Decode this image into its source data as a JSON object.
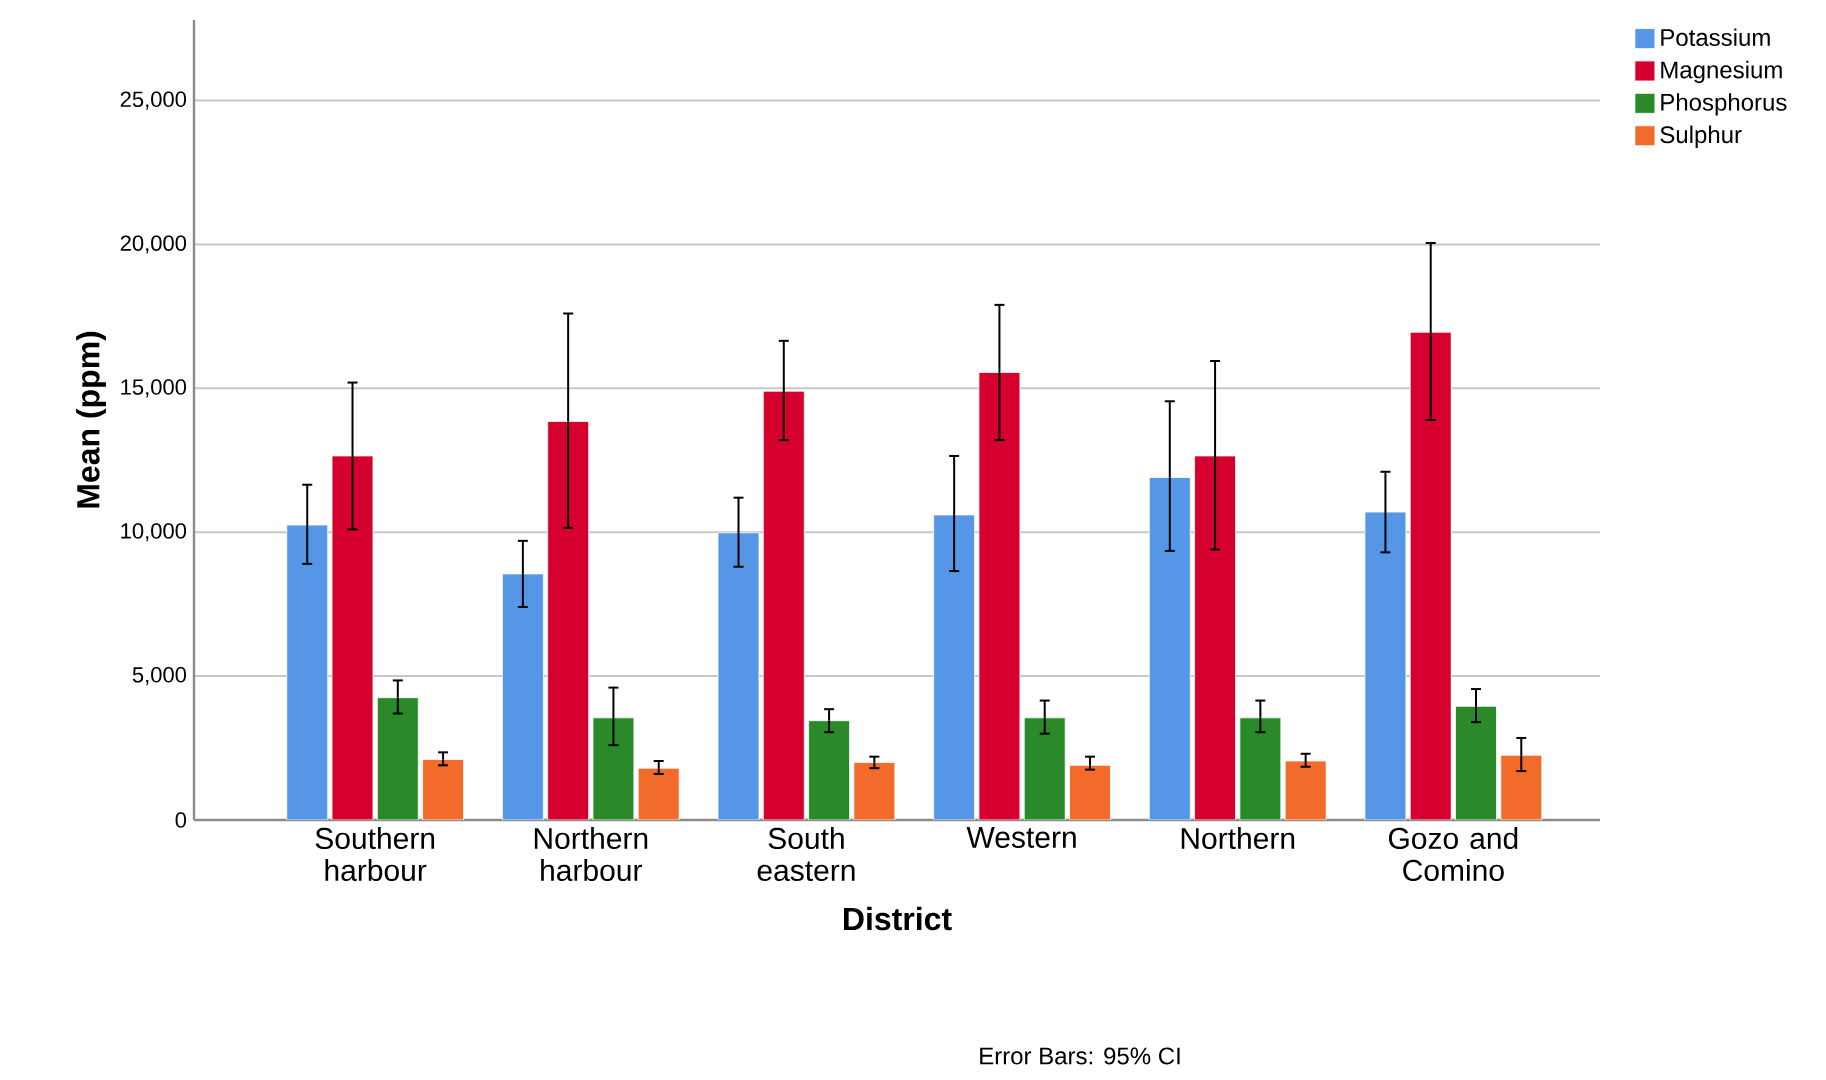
{
  "chart_data": {
    "type": "bar",
    "xlabel": "District",
    "ylabel": "Mean (ppm)",
    "categories": [
      "Southern harbour",
      "Northern harbour",
      "South eastern",
      "Western",
      "Northern",
      "Gozo and Comino"
    ],
    "series": [
      {
        "name": "Potassium",
        "color": "#5596e6",
        "values": [
          10250,
          8550,
          9980,
          10600,
          11900,
          10700
        ],
        "errors": [
          [
            8900,
            11650
          ],
          [
            7400,
            9700
          ],
          [
            8800,
            11200
          ],
          [
            8650,
            12650
          ],
          [
            9350,
            14550
          ],
          [
            9300,
            12100
          ]
        ]
      },
      {
        "name": "Magnesium",
        "color": "#d6002f",
        "values": [
          12650,
          13850,
          14900,
          15550,
          12650,
          16950
        ],
        "errors": [
          [
            10100,
            15200
          ],
          [
            10150,
            17600
          ],
          [
            13200,
            16650
          ],
          [
            13200,
            17900
          ],
          [
            9400,
            15950
          ],
          [
            13900,
            20050
          ]
        ]
      },
      {
        "name": "Phosphorus",
        "color": "#2a8a2a",
        "values": [
          4250,
          3550,
          3450,
          3550,
          3550,
          3950
        ],
        "errors": [
          [
            3700,
            4850
          ],
          [
            2600,
            4600
          ],
          [
            3050,
            3850
          ],
          [
            3000,
            4150
          ],
          [
            3050,
            4150
          ],
          [
            3400,
            4550
          ]
        ]
      },
      {
        "name": "Sulphur",
        "color": "#f26b2b",
        "values": [
          2100,
          1800,
          2000,
          1900,
          2050,
          2250
        ],
        "errors": [
          [
            1900,
            2350
          ],
          [
            1600,
            2050
          ],
          [
            1800,
            2200
          ],
          [
            1750,
            2200
          ],
          [
            1850,
            2300
          ],
          [
            1700,
            2850
          ]
        ]
      }
    ],
    "ylim": [
      0,
      27800
    ],
    "yticks": [
      {
        "value": 0,
        "label": "0"
      },
      {
        "value": 5000,
        "label": "5,000"
      },
      {
        "value": 10000,
        "label": "10,000"
      },
      {
        "value": 15000,
        "label": "15,000"
      },
      {
        "value": 20000,
        "label": "20,000"
      },
      {
        "value": 25000,
        "label": "25,000"
      }
    ],
    "grid": "y",
    "legend": "top right",
    "annotations": [
      "Error Bars: 95% CI"
    ]
  }
}
